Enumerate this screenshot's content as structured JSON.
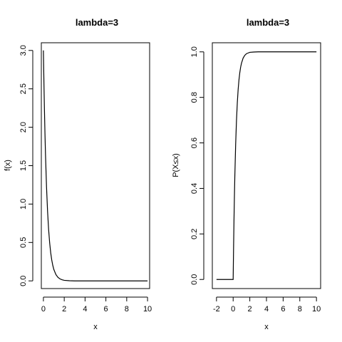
{
  "chart_data": [
    {
      "type": "line",
      "title": "lambda=3",
      "xlabel": "x",
      "ylabel": "f(x)",
      "xlim": [
        -0.2,
        10.2
      ],
      "ylim": [
        -0.1,
        3.1
      ],
      "xticks": [
        0,
        2,
        4,
        6,
        8,
        10
      ],
      "xtick_labels": [
        "0",
        "2",
        "4",
        "6",
        "8",
        "10"
      ],
      "yticks": [
        0,
        0.5,
        1,
        1.5,
        2,
        2.5,
        3
      ],
      "ytick_labels": [
        "0.0",
        "0.5",
        "1.0",
        "1.5",
        "2.0",
        "2.5",
        "3.0"
      ],
      "grid": false,
      "series": [
        {
          "x": [
            0,
            0.05,
            0.1,
            0.15,
            0.2,
            0.3,
            0.4,
            0.5,
            0.6,
            0.7,
            0.8,
            0.9,
            1.0,
            1.2,
            1.4,
            1.6,
            1.8,
            2.0,
            2.5,
            3,
            4,
            5,
            6,
            7,
            8,
            9,
            10
          ],
          "y": [
            3.0,
            2.582,
            2.222,
            1.913,
            1.646,
            1.22,
            0.904,
            0.669,
            0.496,
            0.367,
            0.272,
            0.202,
            0.149,
            0.082,
            0.045,
            0.025,
            0.014,
            0.007,
            0.002,
            0,
            0,
            0,
            0,
            0,
            0,
            0,
            0
          ]
        }
      ]
    },
    {
      "type": "line",
      "title": "lambda=3",
      "xlabel": "x",
      "ylabel": "P(X≤x)",
      "xlim": [
        -2.5,
        10.5
      ],
      "ylim": [
        -0.04,
        1.04
      ],
      "xticks": [
        -2,
        0,
        2,
        4,
        6,
        8,
        10
      ],
      "xtick_labels": [
        "-2",
        "0",
        "2",
        "4",
        "6",
        "8",
        "10"
      ],
      "yticks": [
        0,
        0.2,
        0.4,
        0.6,
        0.8,
        1
      ],
      "ytick_labels": [
        "0.0",
        "0.2",
        "0.4",
        "0.6",
        "0.8",
        "1.0"
      ],
      "grid": false,
      "series": [
        {
          "x": [
            -2,
            -1,
            0,
            0.05,
            0.1,
            0.15,
            0.2,
            0.3,
            0.4,
            0.5,
            0.6,
            0.7,
            0.8,
            0.9,
            1.0,
            1.2,
            1.4,
            1.6,
            1.8,
            2.0,
            2.5,
            3,
            4,
            5,
            6,
            7,
            8,
            9,
            10
          ],
          "y": [
            0,
            0,
            0,
            0.139,
            0.259,
            0.362,
            0.451,
            0.593,
            0.699,
            0.777,
            0.835,
            0.878,
            0.909,
            0.933,
            0.95,
            0.973,
            0.985,
            0.992,
            0.995,
            0.998,
            0.9994,
            1,
            1,
            1,
            1,
            1,
            1,
            1,
            1
          ]
        }
      ]
    }
  ]
}
